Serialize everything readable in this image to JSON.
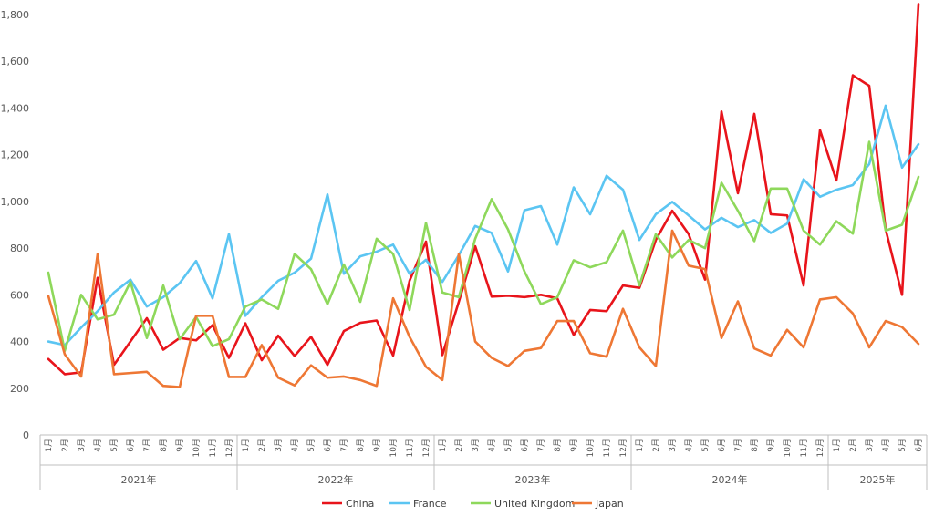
{
  "chart_data": {
    "type": "line",
    "title": "",
    "xlabel": "",
    "ylabel": "",
    "ylim": [
      0,
      1800
    ],
    "yticks": [
      "0",
      "200",
      "400",
      "600",
      "800",
      "1,000",
      "1,200",
      "1,400",
      "1,600",
      "1,800"
    ],
    "grid": false,
    "legend_position": "bottom",
    "years": [
      {
        "label": "2021年",
        "months": [
          "1月",
          "2月",
          "3月",
          "4月",
          "5月",
          "6月",
          "7月",
          "8月",
          "9月",
          "10月",
          "11月",
          "12月"
        ]
      },
      {
        "label": "2022年",
        "months": [
          "1月",
          "2月",
          "3月",
          "4月",
          "5月",
          "6月",
          "7月",
          "8月",
          "9月",
          "10月",
          "11月",
          "12月"
        ]
      },
      {
        "label": "2023年",
        "months": [
          "1月",
          "2月",
          "3月",
          "4月",
          "5月",
          "6月",
          "7月",
          "8月",
          "9月",
          "10月",
          "11月",
          "12月"
        ]
      },
      {
        "label": "2024年",
        "months": [
          "1月",
          "2月",
          "3月",
          "4月",
          "5月",
          "6月",
          "7月",
          "8月",
          "9月",
          "10月",
          "11月",
          "12月"
        ]
      },
      {
        "label": "2025年",
        "months": [
          "1月",
          "2月",
          "3月",
          "4月",
          "5月",
          "6月"
        ]
      }
    ],
    "series": [
      {
        "name": "China",
        "color": "#e8141b",
        "values": [
          325,
          260,
          268,
          673,
          300,
          400,
          500,
          365,
          415,
          405,
          470,
          330,
          478,
          320,
          425,
          338,
          420,
          300,
          445,
          480,
          490,
          340,
          660,
          828,
          342,
          570,
          808,
          592,
          596,
          590,
          600,
          585,
          428,
          535,
          530,
          640,
          630,
          835,
          960,
          860,
          665,
          1385,
          1035,
          1375,
          945,
          940,
          640,
          1305,
          1090,
          1540,
          1495,
          880,
          600,
          1845
        ]
      },
      {
        "name": "France",
        "color": "#5bc5f2",
        "values": [
          400,
          385,
          460,
          530,
          610,
          665,
          550,
          590,
          650,
          745,
          585,
          860,
          510,
          590,
          660,
          695,
          755,
          1030,
          690,
          765,
          785,
          815,
          690,
          750,
          655,
          770,
          895,
          865,
          700,
          962,
          980,
          815,
          1060,
          945,
          1110,
          1050,
          835,
          945,
          998,
          940,
          880,
          930,
          890,
          920,
          865,
          905,
          1095,
          1020,
          1050,
          1070,
          1160,
          1410,
          1145,
          1245
        ]
      },
      {
        "name": "United Kingdom",
        "color": "#8ed85b",
        "values": [
          695,
          360,
          600,
          495,
          515,
          655,
          415,
          640,
          410,
          505,
          380,
          410,
          550,
          580,
          540,
          775,
          710,
          560,
          730,
          570,
          840,
          775,
          535,
          908,
          610,
          590,
          840,
          1010,
          880,
          700,
          560,
          590,
          748,
          718,
          740,
          875,
          640,
          860,
          760,
          835,
          800,
          1080,
          960,
          830,
          1055,
          1055,
          875,
          815,
          915,
          862,
          1255,
          875,
          900,
          1105
        ]
      },
      {
        "name": "Japan",
        "color": "#ee7734",
        "values": [
          595,
          345,
          250,
          775,
          260,
          265,
          270,
          210,
          205,
          510,
          510,
          248,
          248,
          385,
          245,
          212,
          298,
          245,
          250,
          235,
          210,
          585,
          420,
          292,
          235,
          775,
          400,
          330,
          295,
          360,
          372,
          488,
          488,
          350,
          335,
          540,
          375,
          295,
          875,
          725,
          710,
          415,
          572,
          370,
          340,
          450,
          375,
          580,
          590,
          520,
          375,
          488,
          462,
          390
        ]
      }
    ]
  }
}
